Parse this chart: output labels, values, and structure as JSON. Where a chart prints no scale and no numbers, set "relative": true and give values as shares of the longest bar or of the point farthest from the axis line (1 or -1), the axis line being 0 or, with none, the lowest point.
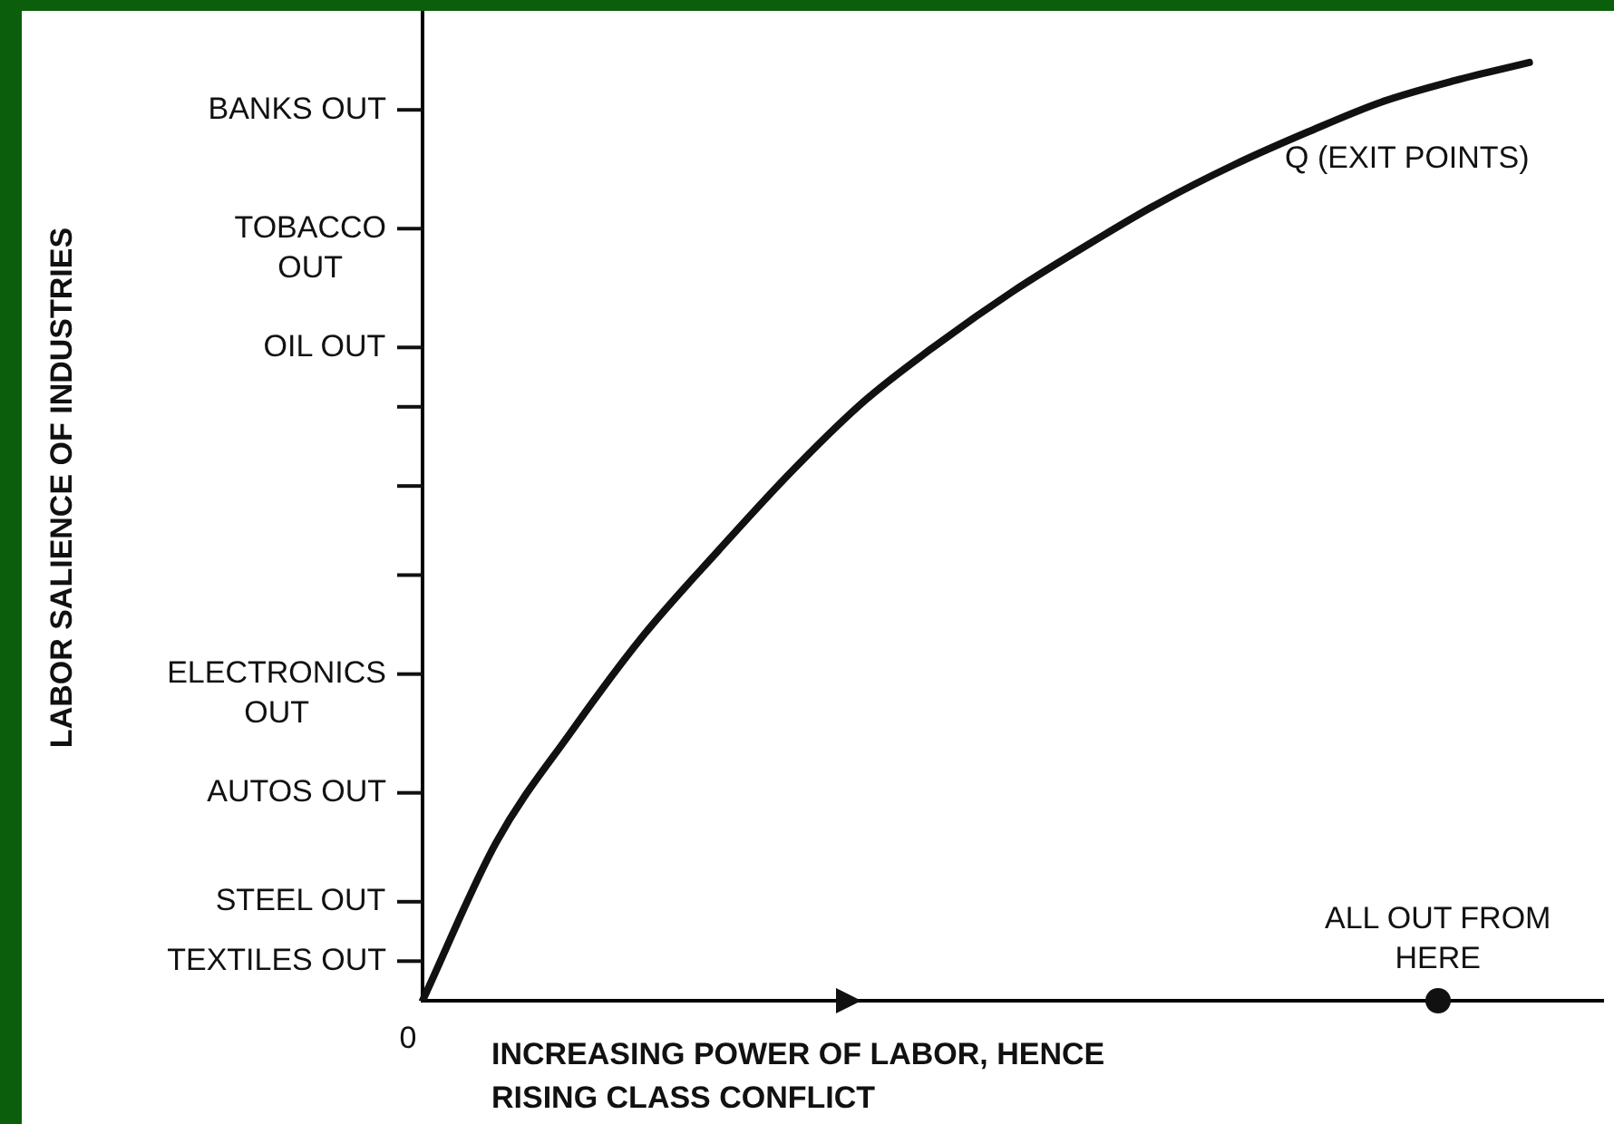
{
  "chart_data": {
    "type": "line",
    "relative": true,
    "xlabel": "INCREASING POWER OF LABOR, HENCE RISING CLASS CONFLICT",
    "categories": [
      null,
      null,
      null,
      null,
      null,
      null,
      null,
      null,
      null,
      null,
      null,
      null,
      null,
      null,
      null,
      null,
      null
    ],
    "series": [
      {
        "name": "Q (EXIT POINTS)",
        "color": "#111111",
        "values": [
          0,
          0.169,
          0.285,
          0.39,
          0.479,
          0.564,
          0.64,
          0.701,
          0.756,
          0.805,
          0.851,
          0.891,
          0.926,
          0.958,
          0.981,
          1,
          null
        ]
      }
    ],
    "annotations": [
      "ALL OUT FROM HERE",
      "0",
      "TEXTILES OUT",
      "STEEL OUT",
      "AUTOS OUT",
      "ELECTRONICS\nOUT",
      "OIL OUT",
      "TOBACCO\nOUT",
      "BANKS OUT",
      "LABOR SALIENCE OF INDUSTRIES"
    ],
    "grid": false,
    "legend": false,
    "marker": "none",
    "line_style": "solid"
  }
}
